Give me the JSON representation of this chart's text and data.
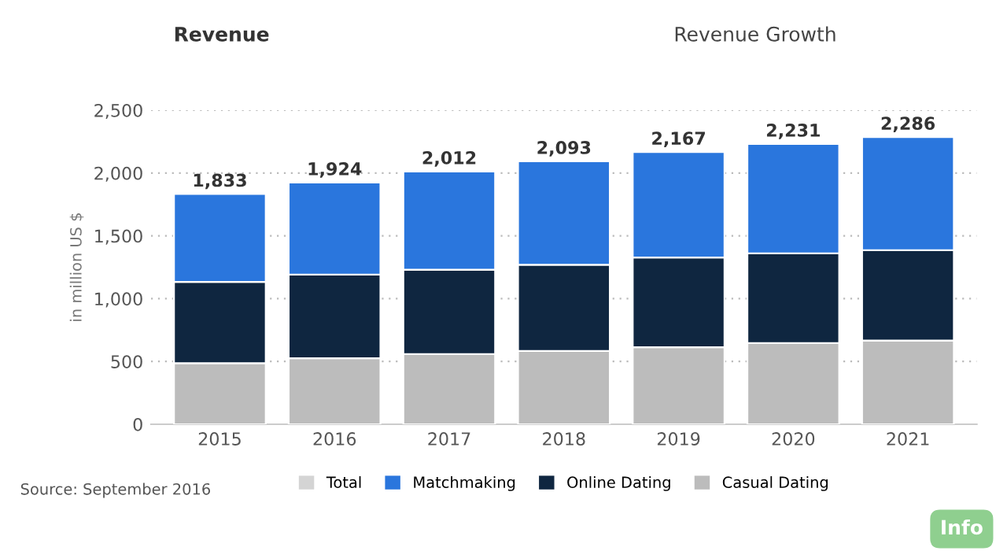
{
  "chart_data": {
    "type": "bar",
    "stacked": true,
    "title": "Revenue",
    "ylabel": "in million US $",
    "categories": [
      "2015",
      "2016",
      "2017",
      "2018",
      "2019",
      "2020",
      "2021"
    ],
    "series": [
      {
        "name": "Casual Dating",
        "color": "#bcbcbc",
        "values": [
          486,
          525,
          559,
          583,
          613,
          647,
          666
        ]
      },
      {
        "name": "Online Dating",
        "color": "#0f2640",
        "values": [
          647,
          666,
          671,
          686,
          714,
          714,
          720
        ]
      },
      {
        "name": "Matchmaking",
        "color": "#2a76dd",
        "values": [
          700,
          733,
          782,
          824,
          840,
          870,
          900
        ]
      },
      {
        "name": "Total",
        "color": "#d4d4d4",
        "values": [
          null,
          null,
          null,
          null,
          null,
          null,
          null
        ]
      }
    ],
    "totals": [
      "1,833",
      "1,924",
      "2,012",
      "2,093",
      "2,167",
      "2,231",
      "2,286"
    ],
    "ylim": [
      0,
      2500
    ],
    "yticks": [
      {
        "value": 0,
        "label": "0"
      },
      {
        "value": 500,
        "label": "500"
      },
      {
        "value": 1000,
        "label": "1,000"
      },
      {
        "value": 1500,
        "label": "1,500"
      },
      {
        "value": 2000,
        "label": "2,000"
      },
      {
        "value": 2500,
        "label": "2,500"
      }
    ],
    "grid": "y",
    "legend": "bottom",
    "annotations": [
      "Revenue Growth",
      "Info",
      "Source: September 2016"
    ]
  }
}
